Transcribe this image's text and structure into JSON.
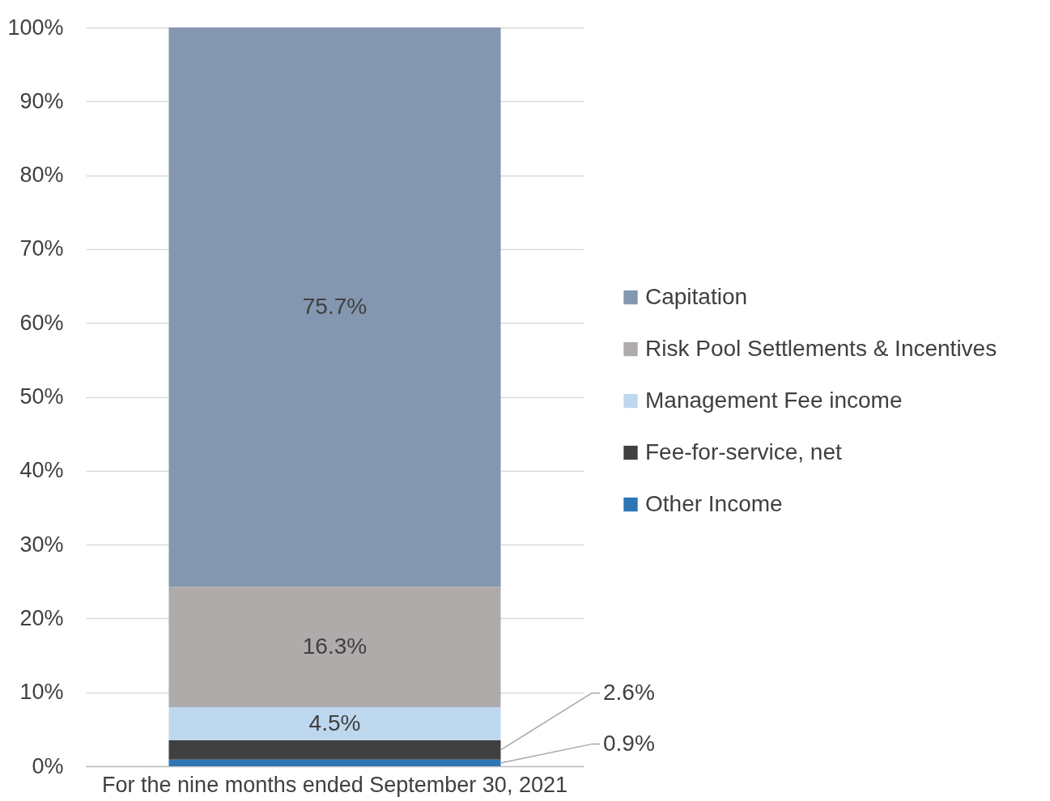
{
  "chart_data": {
    "type": "bar",
    "stacked": true,
    "categories": [
      "For the nine months ended September 30, 2021"
    ],
    "series": [
      {
        "name": "Other Income",
        "color": "#2e75b6",
        "values": [
          0.9
        ],
        "value_labels": [
          "0.9%"
        ]
      },
      {
        "name": "Fee-for-service, net",
        "color": "#404040",
        "values": [
          2.6
        ],
        "value_labels": [
          "2.6%"
        ]
      },
      {
        "name": "Management Fee income",
        "color": "#bdd7ee",
        "values": [
          4.5
        ],
        "value_labels": [
          "4.5%"
        ]
      },
      {
        "name": "Risk Pool Settlements & Incentives",
        "color": "#afabab",
        "values": [
          16.3
        ],
        "value_labels": [
          "16.3%"
        ]
      },
      {
        "name": "Capitation",
        "color": "#8497b0",
        "values": [
          75.7
        ],
        "value_labels": [
          "75.7%"
        ]
      }
    ],
    "ylim": [
      0,
      100
    ],
    "yticks": [
      {
        "value": 0,
        "label": "0%"
      },
      {
        "value": 10,
        "label": "10%"
      },
      {
        "value": 20,
        "label": "20%"
      },
      {
        "value": 30,
        "label": "30%"
      },
      {
        "value": 40,
        "label": "40%"
      },
      {
        "value": 50,
        "label": "50%"
      },
      {
        "value": 60,
        "label": "60%"
      },
      {
        "value": 70,
        "label": "70%"
      },
      {
        "value": 80,
        "label": "80%"
      },
      {
        "value": 90,
        "label": "90%"
      },
      {
        "value": 100,
        "label": "100%"
      }
    ],
    "grid": "y",
    "legend": "right"
  }
}
